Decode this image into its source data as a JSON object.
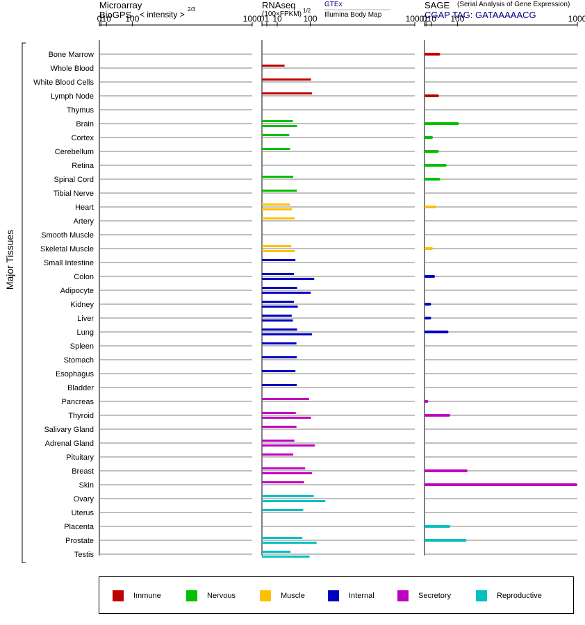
{
  "headers": {
    "microarray_line1": "Microarray",
    "microarray_line2": "BioGPS",
    "microarray_intensity": "< intensity >",
    "microarray_exp": "2/3",
    "rnaseq_line1": "RNAseq",
    "rnaseq_line2": "(100×FPKM)",
    "rnaseq_exp": "1/2",
    "rnaseq_gtex": "GTEx",
    "rnaseq_ibm": "Illumina Body Map",
    "sage_line1": "SAGE",
    "sage_desc": "(Serial Analysis of Gene Expression)",
    "sage_tag": "CGAP TAG: GATAAAAACG"
  },
  "y_axis_label": "Major Tissues",
  "legend": [
    {
      "label": "Immune",
      "color": "#c00000"
    },
    {
      "label": "Nervous",
      "color": "#00c000"
    },
    {
      "label": "Muscle",
      "color": "#ffc000"
    },
    {
      "label": "Internal",
      "color": "#0000c0"
    },
    {
      "label": "Secretory",
      "color": "#c000c0"
    },
    {
      "label": "Reproductive",
      "color": "#00c0c0"
    }
  ],
  "chart_data": {
    "type": "bar",
    "tick_labels": [
      "0",
      "1",
      "10",
      "100",
      "1000"
    ],
    "tick_values": [
      0,
      1,
      10,
      100,
      1000
    ],
    "scale": "power-2/3 (microarray, SAGE), power-1/2 (RNAseq)",
    "xlim": [
      0,
      1000
    ],
    "categories": [
      "Bone Marrow",
      "Whole Blood",
      "White Blood Cells",
      "Lymph Node",
      "Thymus",
      "Brain",
      "Cortex",
      "Cerebellum",
      "Retina",
      "Spinal Cord",
      "Tibial Nerve",
      "Heart",
      "Artery",
      "Smooth Muscle",
      "Skeletal Muscle",
      "Small Intestine",
      "Colon",
      "Adipocyte",
      "Kidney",
      "Liver",
      "Lung",
      "Spleen",
      "Stomach",
      "Esophagus",
      "Bladder",
      "Pancreas",
      "Thyroid",
      "Salivary Gland",
      "Adrenal Gland",
      "Pituitary",
      "Breast",
      "Skin",
      "Ovary",
      "Uterus",
      "Placenta",
      "Prostate",
      "Testis"
    ],
    "groups": [
      "Immune",
      "Immune",
      "Immune",
      "Immune",
      "Immune",
      "Nervous",
      "Nervous",
      "Nervous",
      "Nervous",
      "Nervous",
      "Nervous",
      "Muscle",
      "Muscle",
      "Muscle",
      "Muscle",
      "Internal",
      "Internal",
      "Internal",
      "Internal",
      "Internal",
      "Internal",
      "Internal",
      "Internal",
      "Internal",
      "Internal",
      "Secretory",
      "Secretory",
      "Secretory",
      "Secretory",
      "Secretory",
      "Secretory",
      "Secretory",
      "Reproductive",
      "Reproductive",
      "Reproductive",
      "Reproductive",
      "Reproductive"
    ],
    "panels": [
      {
        "id": "microarray",
        "exponent": 0.6667,
        "series": [
          {
            "values": [
              null,
              null,
              null,
              null,
              null,
              null,
              null,
              null,
              null,
              null,
              null,
              null,
              null,
              null,
              null,
              null,
              null,
              null,
              null,
              null,
              null,
              null,
              null,
              null,
              null,
              null,
              null,
              null,
              null,
              null,
              null,
              null,
              null,
              null,
              null,
              null,
              null
            ]
          }
        ]
      },
      {
        "id": "rnaseq",
        "exponent": 0.5,
        "series": [
          {
            "name": "GTEx",
            "values": [
              null,
              22,
              103,
              107,
              null,
              41,
              32,
              34,
              null,
              42,
              52,
              34,
              46,
              null,
              37,
              48,
              44,
              53,
              44,
              38,
              53,
              51,
              52,
              48,
              52,
              95,
              49,
              51,
              45,
              42,
              80,
              76,
              115,
              73,
              null,
              70,
              35
            ]
          },
          {
            "name": "Illumina Body Map",
            "values": [
              null,
              null,
              null,
              null,
              null,
              53,
              null,
              null,
              null,
              null,
              null,
              38,
              null,
              null,
              46,
              null,
              117,
              102,
              55,
              41,
              107,
              null,
              null,
              null,
              null,
              null,
              103,
              null,
              120,
              null,
              107,
              null,
              172,
              null,
              null,
              128,
              97
            ]
          }
        ]
      },
      {
        "id": "sage",
        "exponent": 0.6667,
        "series": [
          {
            "values": [
              33,
              null,
              null,
              29,
              null,
              107,
              13,
              29,
              55,
              33,
              null,
              22,
              null,
              null,
              13,
              null,
              18,
              null,
              9,
              9,
              62,
              null,
              null,
              null,
              null,
              4,
              69,
              null,
              null,
              null,
              149,
              1000,
              null,
              null,
              69,
              144,
              null
            ]
          }
        ]
      }
    ]
  }
}
